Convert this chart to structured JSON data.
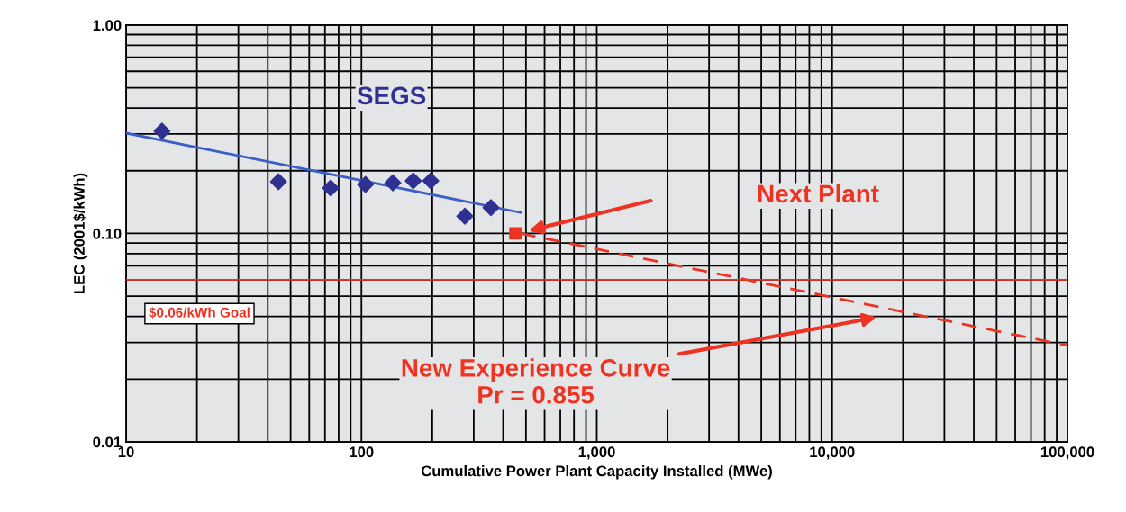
{
  "chart_data": {
    "type": "scatter",
    "log": "xy",
    "grid": true,
    "xlabel": "Cumulative Power Plant Capacity Installed (MWe)",
    "ylabel": "LEC (2001$/kWh)",
    "xlim": [
      10,
      100000
    ],
    "xticks": [
      10,
      100,
      {
        "value": 1000,
        "label": "1,000"
      },
      {
        "value": 10000,
        "label": "10,000"
      },
      {
        "value": 100000,
        "label": "100,000"
      }
    ],
    "ylim": [
      0.01,
      1
    ],
    "yticks": [
      0.01,
      {
        "value": 0.1,
        "label": "0.10"
      },
      {
        "value": 1,
        "label": "1.00"
      }
    ],
    "series": [
      {
        "name": "SEGS",
        "marker": "diamond",
        "color": "#2e3192",
        "x": [
          14.2,
          44.4,
          74,
          104,
          136,
          166,
          197,
          275,
          355
        ],
        "values": [
          0.31,
          0.177,
          0.165,
          0.172,
          0.175,
          0.179,
          0.179,
          0.121,
          0.133
        ]
      },
      {
        "type": "line",
        "color": "#3a5fc8",
        "line_style": "solid",
        "x": [
          10,
          475
        ],
        "values": [
          0.303,
          0.126
        ]
      },
      {
        "marker": "square",
        "color": "#ee3322",
        "x": [
          451
        ],
        "values": [
          0.1
        ]
      },
      {
        "type": "line",
        "color": "#ee3322",
        "line_style": "dashed",
        "x": [
          475,
          100000
        ],
        "values": [
          0.1,
          0.029
        ]
      }
    ],
    "ref_lines": [
      {
        "axis": "y",
        "value": 0.06,
        "label": "$0.06/kWh Goal",
        "color": "#ee3322"
      }
    ],
    "annotations": [
      "Next Plant",
      "New Experience Curve\nPr = 0.855"
    ]
  }
}
